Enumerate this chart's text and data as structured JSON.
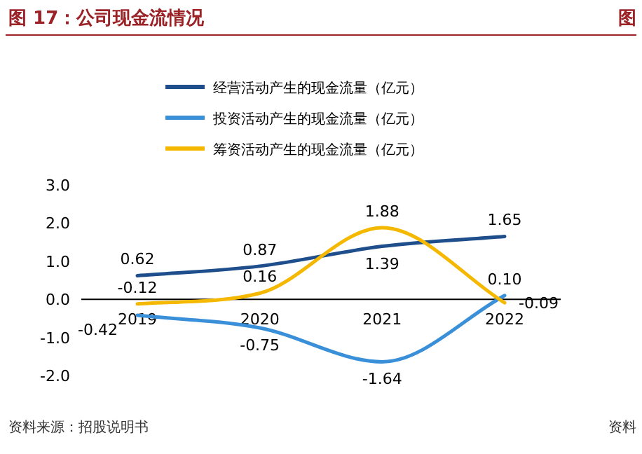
{
  "chart_data": {
    "type": "line",
    "title": "图 17：公司现金流情况",
    "categories": [
      "2019",
      "2020",
      "2021",
      "2022"
    ],
    "series": [
      {
        "name": "经营活动产生的现金流量（亿元）",
        "color": "#1f4e8c",
        "values": [
          0.62,
          0.87,
          1.39,
          1.65
        ]
      },
      {
        "name": "投资活动产生的现金流量（亿元）",
        "color": "#3a8fd9",
        "values": [
          -0.42,
          -0.75,
          -1.64,
          0.1
        ],
        "value_labels": [
          "-0.42",
          "-0.75",
          "-1.64",
          "0.10"
        ]
      },
      {
        "name": "筹资活动产生的现金流量（亿元）",
        "color": "#f5b800",
        "values": [
          -0.12,
          0.16,
          1.88,
          -0.09
        ]
      }
    ],
    "ylim": [
      -2,
      3
    ],
    "yticks": [
      {
        "value": -2,
        "label": "-2.0"
      },
      {
        "value": -1,
        "label": "-1.0"
      },
      {
        "value": 0,
        "label": "0.0"
      },
      {
        "value": 1,
        "label": "1.0"
      },
      {
        "value": 2,
        "label": "2.0"
      },
      {
        "value": 3,
        "label": "3.0"
      }
    ],
    "data_labels": true,
    "legend": "top left",
    "grid": false,
    "annotations": [
      "资料来源：招股说明书",
      "图",
      "资料"
    ]
  }
}
